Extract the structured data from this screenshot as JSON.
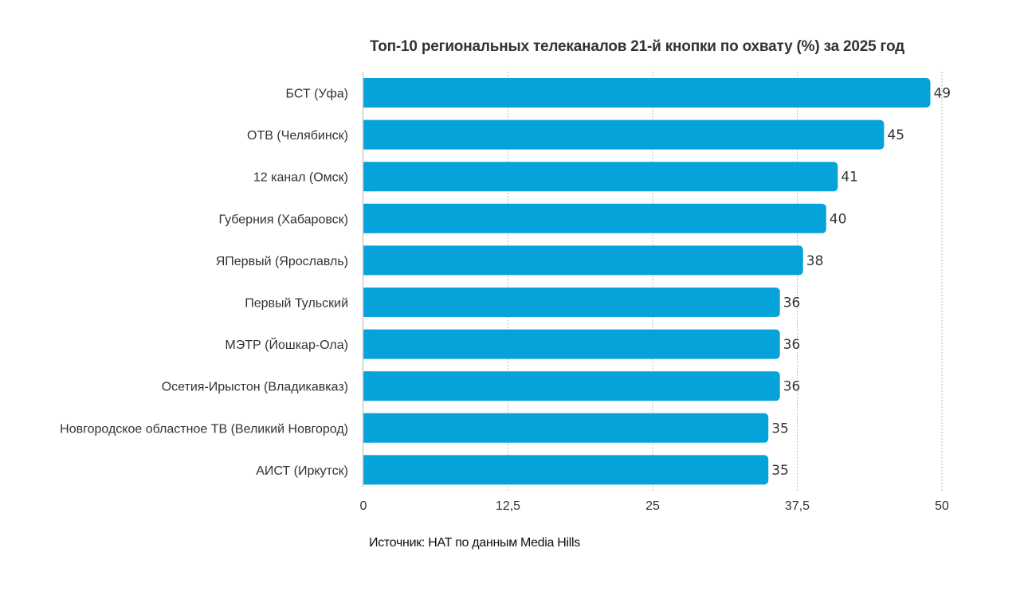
{
  "chart_data": {
    "type": "bar",
    "orientation": "horizontal",
    "title": "Топ-10 региональных телеканалов 21-й кнопки по охвату (%) за 2025 год",
    "categories": [
      "БСТ (Уфа)",
      "ОТВ (Челябинск)",
      "12 канал (Омск)",
      "Губерния (Хабаровск)",
      "ЯПервый (Ярославль)",
      "Первый Тульский",
      "МЭТР (Йошкар-Ола)",
      "Осетия-Ирыстон (Владикавказ)",
      "Новгородское областное ТВ (Великий Новгород)",
      "АИСТ (Иркутск)"
    ],
    "values": [
      49,
      45,
      41,
      40,
      38,
      36,
      36,
      36,
      35,
      35
    ],
    "xlabel": "",
    "ylabel": "",
    "xlim": [
      0,
      50
    ],
    "x_ticks": [
      0,
      12.5,
      25,
      37.5,
      50
    ],
    "x_tick_labels": [
      "0",
      "12,5",
      "25",
      "37,5",
      "50"
    ],
    "grid": true,
    "legend": "none",
    "bar_color": "#05a3d9",
    "source": "Источник: НАТ по данным Media Hills"
  }
}
